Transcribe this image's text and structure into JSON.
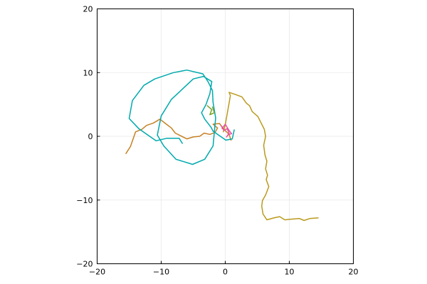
{
  "chart_data": {
    "type": "line",
    "title": "",
    "xlabel": "",
    "ylabel": "",
    "xlim": [
      -20,
      20
    ],
    "ylim": [
      -20,
      20
    ],
    "aspect": "equal",
    "grid": true,
    "legend": "none",
    "x_ticks": [
      "−20",
      "−10",
      "0",
      "10",
      "20"
    ],
    "y_ticks": [
      "−20",
      "−10",
      "0",
      "10",
      "20"
    ],
    "series": [
      {
        "color": "#ba9a1d",
        "points": [
          [
            -0.3,
            0.7
          ],
          [
            0.0,
            1.8
          ],
          [
            0.6,
            5.2
          ],
          [
            0.8,
            6.4
          ],
          [
            0.6,
            6.9
          ],
          [
            1.5,
            6.6
          ],
          [
            2.6,
            6.2
          ],
          [
            3.3,
            5.2
          ],
          [
            3.8,
            4.8
          ],
          [
            4.2,
            3.9
          ],
          [
            5.1,
            3.1
          ],
          [
            5.6,
            2.1
          ],
          [
            6.1,
            1.1
          ],
          [
            6.3,
            0.0
          ],
          [
            6.0,
            -1.4
          ],
          [
            6.2,
            -2.9
          ],
          [
            6.5,
            -3.9
          ],
          [
            6.3,
            -5.1
          ],
          [
            6.6,
            -6.1
          ],
          [
            6.4,
            -6.8
          ],
          [
            6.8,
            -7.9
          ],
          [
            6.3,
            -9.2
          ],
          [
            5.8,
            -10.1
          ],
          [
            5.7,
            -11.0
          ],
          [
            5.9,
            -12.2
          ],
          [
            6.5,
            -13.1
          ],
          [
            7.6,
            -12.8
          ],
          [
            8.5,
            -12.6
          ],
          [
            9.3,
            -13.1
          ],
          [
            10.2,
            -13.0
          ],
          [
            11.6,
            -12.9
          ],
          [
            12.3,
            -13.2
          ],
          [
            13.2,
            -12.9
          ],
          [
            14.5,
            -12.8
          ]
        ]
      },
      {
        "color": "#c68125",
        "points": [
          [
            -15.5,
            -2.7
          ],
          [
            -14.8,
            -1.6
          ],
          [
            -14.0,
            0.7
          ],
          [
            -13.0,
            1.1
          ],
          [
            -12.3,
            1.7
          ],
          [
            -11.2,
            2.1
          ],
          [
            -10.2,
            2.7
          ],
          [
            -9.2,
            1.9
          ],
          [
            -8.4,
            1.3
          ],
          [
            -7.8,
            0.5
          ],
          [
            -7.0,
            0.1
          ],
          [
            -6.0,
            -0.4
          ],
          [
            -5.0,
            -0.1
          ],
          [
            -4.0,
            0.0
          ],
          [
            -3.3,
            0.5
          ],
          [
            -2.4,
            0.3
          ],
          [
            -1.6,
            0.6
          ],
          [
            -1.2,
            1.3
          ],
          [
            -1.9,
            1.9
          ],
          [
            -0.9,
            2.0
          ],
          [
            -0.2,
            1.1
          ],
          [
            0.6,
            0.3
          ],
          [
            0.9,
            -0.6
          ]
        ]
      },
      {
        "color": "#00a9ad",
        "points": [
          [
            1.4,
            1.0
          ],
          [
            1.1,
            -0.4
          ],
          [
            0.1,
            -0.6
          ],
          [
            -0.9,
            0.1
          ],
          [
            -1.9,
            0.8
          ],
          [
            -2.2,
            1.4
          ],
          [
            -3.2,
            2.7
          ],
          [
            -3.7,
            3.7
          ],
          [
            -3.0,
            5.0
          ],
          [
            -2.4,
            6.7
          ],
          [
            -2.1,
            8.6
          ],
          [
            -3.4,
            9.4
          ],
          [
            -5.0,
            9.0
          ],
          [
            -6.7,
            7.4
          ],
          [
            -8.4,
            5.8
          ],
          [
            -10.0,
            3.2
          ],
          [
            -10.6,
            0.2
          ],
          [
            -9.6,
            -1.5
          ],
          [
            -7.7,
            -3.6
          ],
          [
            -5.1,
            -4.4
          ],
          [
            -3.2,
            -3.6
          ],
          [
            -1.9,
            -1.5
          ],
          [
            -1.7,
            0.7
          ],
          [
            -1.5,
            2.9
          ],
          [
            -1.9,
            5.3
          ],
          [
            -2.0,
            7.2
          ],
          [
            -2.7,
            8.6
          ],
          [
            -3.5,
            9.8
          ],
          [
            -6.0,
            10.4
          ],
          [
            -8.1,
            10.0
          ],
          [
            -11.0,
            9.0
          ],
          [
            -12.7,
            8.0
          ],
          [
            -14.5,
            5.6
          ],
          [
            -15.0,
            2.8
          ],
          [
            -13.5,
            1.2
          ],
          [
            -11.8,
            0.0
          ],
          [
            -10.8,
            -0.7
          ],
          [
            -9.1,
            -0.3
          ],
          [
            -7.2,
            -0.3
          ],
          [
            -6.7,
            -1.1
          ]
        ]
      },
      {
        "color": "#e7509e",
        "points": [
          [
            -0.6,
            1.6
          ],
          [
            -0.2,
            0.9
          ],
          [
            0.3,
            1.2
          ],
          [
            0.6,
            0.5
          ],
          [
            0.2,
            -0.1
          ],
          [
            0.5,
            0.3
          ],
          [
            1.0,
            0.4
          ],
          [
            0.6,
            0.9
          ],
          [
            0.0,
            1.9
          ],
          [
            -0.5,
            1.2
          ]
        ]
      },
      {
        "color": "#7aa32a",
        "points": [
          [
            -2.8,
            4.8
          ],
          [
            -2.1,
            4.2
          ],
          [
            -2.4,
            3.4
          ],
          [
            -1.7,
            3.7
          ],
          [
            -2.0,
            4.6
          ]
        ]
      }
    ]
  }
}
